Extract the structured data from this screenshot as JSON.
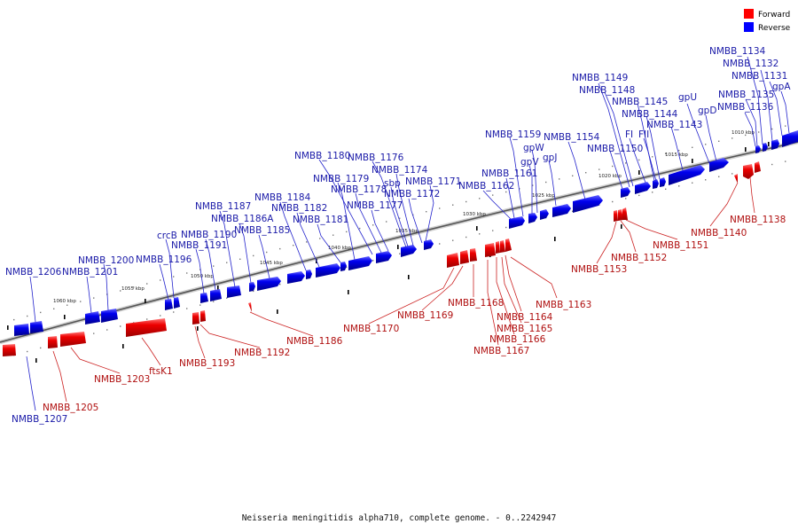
{
  "legend": [
    {
      "label": "Forward",
      "color": "#ff0000"
    },
    {
      "label": "Reverse",
      "color": "#0000ff"
    }
  ],
  "caption": "Neisseria meningitidis alpha710, complete genome. - 0..2242947",
  "scale": {
    "labels": [
      "1010 kbp",
      "1015 kbp",
      "1020 kbp",
      "1025 kbp",
      "1030 kbp",
      "1035 kbp",
      "1040 kbp",
      "1045 kbp",
      "1050 kbp",
      "1055 kbp",
      "1060 kbp"
    ]
  },
  "genes": [
    {
      "name": "NMBB_1134",
      "strand": "reverse"
    },
    {
      "name": "NMBB_1132",
      "strand": "reverse"
    },
    {
      "name": "NMBB_1131",
      "strand": "reverse"
    },
    {
      "name": "gpA",
      "strand": "reverse"
    },
    {
      "name": "NMBB_1135",
      "strand": "reverse"
    },
    {
      "name": "NMBB_1136",
      "strand": "reverse"
    },
    {
      "name": "gpU",
      "strand": "reverse"
    },
    {
      "name": "gpD",
      "strand": "reverse"
    },
    {
      "name": "NMBB_1149",
      "strand": "reverse"
    },
    {
      "name": "NMBB_1148",
      "strand": "reverse"
    },
    {
      "name": "NMBB_1145",
      "strand": "reverse"
    },
    {
      "name": "NMBB_1144",
      "strand": "reverse"
    },
    {
      "name": "FI",
      "strand": "reverse"
    },
    {
      "name": "FII",
      "strand": "reverse"
    },
    {
      "name": "NMBB_1143",
      "strand": "reverse"
    },
    {
      "name": "NMBB_1150",
      "strand": "reverse"
    },
    {
      "name": "NMBB_1154",
      "strand": "reverse"
    },
    {
      "name": "NMBB_1159",
      "strand": "reverse"
    },
    {
      "name": "gpW",
      "strand": "reverse"
    },
    {
      "name": "gpV",
      "strand": "reverse"
    },
    {
      "name": "gpJ",
      "strand": "reverse"
    },
    {
      "name": "NMBB_1161",
      "strand": "reverse"
    },
    {
      "name": "NMBB_1162",
      "strand": "reverse"
    },
    {
      "name": "NMBB_1180",
      "strand": "reverse"
    },
    {
      "name": "NMBB_1176",
      "strand": "reverse"
    },
    {
      "name": "NMBB_1174",
      "strand": "reverse"
    },
    {
      "name": "NMBB_1179",
      "strand": "reverse"
    },
    {
      "name": "sbp",
      "strand": "reverse"
    },
    {
      "name": "NMBB_1171",
      "strand": "reverse"
    },
    {
      "name": "NMBB_1178",
      "strand": "reverse"
    },
    {
      "name": "NMBB_1172",
      "strand": "reverse"
    },
    {
      "name": "NMBB_1184",
      "strand": "reverse"
    },
    {
      "name": "NMBB_1182",
      "strand": "reverse"
    },
    {
      "name": "NMBB_1177",
      "strand": "reverse"
    },
    {
      "name": "NMBB_1187",
      "strand": "reverse"
    },
    {
      "name": "NMBB_1181",
      "strand": "reverse"
    },
    {
      "name": "NMBB_1186A",
      "strand": "reverse"
    },
    {
      "name": "crcB",
      "strand": "reverse"
    },
    {
      "name": "NMBB_1190",
      "strand": "reverse"
    },
    {
      "name": "NMBB_1185",
      "strand": "reverse"
    },
    {
      "name": "NMBB_1191",
      "strand": "reverse"
    },
    {
      "name": "NMBB_1200",
      "strand": "reverse"
    },
    {
      "name": "NMBB_1196",
      "strand": "reverse"
    },
    {
      "name": "NMBB_1206",
      "strand": "reverse"
    },
    {
      "name": "NMBB_1201",
      "strand": "reverse"
    },
    {
      "name": "NMBB_1207",
      "strand": "reverse"
    },
    {
      "name": "NMBB_1138",
      "strand": "forward"
    },
    {
      "name": "NMBB_1140",
      "strand": "forward"
    },
    {
      "name": "NMBB_1151",
      "strand": "forward"
    },
    {
      "name": "NMBB_1152",
      "strand": "forward"
    },
    {
      "name": "NMBB_1153",
      "strand": "forward"
    },
    {
      "name": "NMBB_1163",
      "strand": "forward"
    },
    {
      "name": "NMBB_1164",
      "strand": "forward"
    },
    {
      "name": "NMBB_1165",
      "strand": "forward"
    },
    {
      "name": "NMBB_1166",
      "strand": "forward"
    },
    {
      "name": "NMBB_1167",
      "strand": "forward"
    },
    {
      "name": "NMBB_1168",
      "strand": "forward"
    },
    {
      "name": "NMBB_1169",
      "strand": "forward"
    },
    {
      "name": "NMBB_1170",
      "strand": "forward"
    },
    {
      "name": "NMBB_1186",
      "strand": "forward"
    },
    {
      "name": "NMBB_1192",
      "strand": "forward"
    },
    {
      "name": "NMBB_1193",
      "strand": "forward"
    },
    {
      "name": "ftsK1",
      "strand": "forward"
    },
    {
      "name": "NMBB_1203",
      "strand": "forward"
    },
    {
      "name": "NMBB_1205",
      "strand": "forward"
    }
  ]
}
